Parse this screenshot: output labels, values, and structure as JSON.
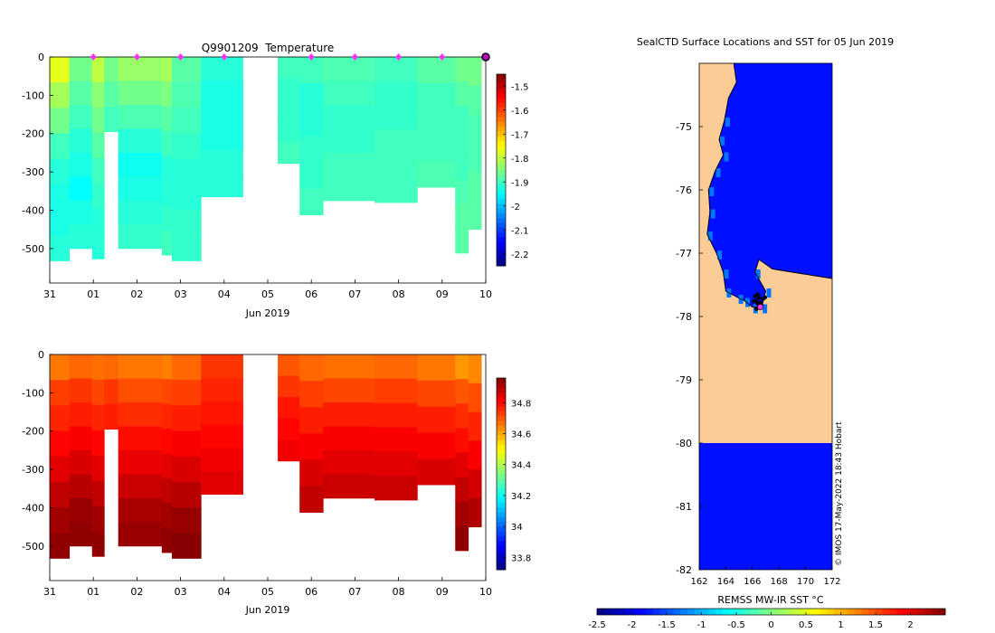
{
  "chart_data": [
    {
      "type": "heatmap",
      "title": "Q9901209  Temperature",
      "xlabel": "Jun 2019",
      "ylabel": "",
      "variable": "temperature",
      "x_range": [
        0,
        10
      ],
      "ylim": [
        -590,
        0
      ],
      "x_tick_labels": [
        "31",
        "01",
        "02",
        "03",
        "04",
        "05",
        "06",
        "07",
        "08",
        "09",
        "10"
      ],
      "y_tick_values": [
        0,
        -100,
        -200,
        -300,
        -400,
        -500
      ],
      "y_tick_labels": [
        "0",
        "-100",
        "-200",
        "-300",
        "-400",
        "-500"
      ],
      "colorbar": {
        "range": [
          -2.25,
          -1.45
        ],
        "tick_values": [
          -1.5,
          -1.6,
          -1.7,
          -1.8,
          -1.9,
          -2,
          -2.1,
          -2.2
        ],
        "tick_labels": [
          "-1.5",
          "-1.6",
          "-1.7",
          "-1.8",
          "-1.9",
          "-2",
          "-2.1",
          "-2.2"
        ],
        "colormap": "jet"
      },
      "profile_markers_x": [
        1,
        2,
        3,
        4,
        6,
        7,
        8,
        9,
        10
      ],
      "profiles": [
        {
          "x0": 0.0,
          "x1": 0.45,
          "bottom": -532,
          "values": [
            -1.77,
            -1.82,
            -1.86,
            -1.9,
            -1.92,
            -1.93,
            -1.93,
            -1.92
          ]
        },
        {
          "x0": 0.45,
          "x1": 0.97,
          "bottom": -500,
          "values": [
            -1.86,
            -1.88,
            -1.9,
            -1.92,
            -1.93,
            -1.95,
            -1.93,
            -1.92
          ]
        },
        {
          "x0": 0.97,
          "x1": 1.25,
          "bottom": -527,
          "values": [
            -1.8,
            -1.84,
            -1.86,
            -1.88,
            -1.9,
            -1.91,
            -1.92,
            -1.92
          ]
        },
        {
          "x0": 1.25,
          "x1": 1.57,
          "bottom": -195,
          "values": [
            -1.86,
            -1.88,
            -1.9
          ]
        },
        {
          "x0": 1.57,
          "x1": 2.57,
          "bottom": -500,
          "values": [
            -1.83,
            -1.86,
            -1.89,
            -1.92,
            -1.94,
            -1.93,
            -1.92,
            -1.91
          ]
        },
        {
          "x0": 2.57,
          "x1": 2.8,
          "bottom": -517,
          "values": [
            -1.82,
            -1.85,
            -1.88,
            -1.9,
            -1.92,
            -1.92,
            -1.91,
            -1.9
          ]
        },
        {
          "x0": 2.8,
          "x1": 3.47,
          "bottom": -532,
          "values": [
            -1.88,
            -1.89,
            -1.9,
            -1.91,
            -1.92,
            -1.92,
            -1.91,
            -1.91
          ]
        },
        {
          "x0": 3.47,
          "x1": 4.43,
          "bottom": -365,
          "values": [
            -1.92,
            -1.93,
            -1.93,
            -1.93,
            -1.92,
            -1.92
          ]
        },
        {
          "x0": 5.23,
          "x1": 5.73,
          "bottom": -278,
          "values": [
            -1.9,
            -1.91,
            -1.91,
            -1.91,
            -1.9
          ]
        },
        {
          "x0": 5.73,
          "x1": 6.27,
          "bottom": -412,
          "values": [
            -1.9,
            -1.92,
            -1.92,
            -1.91,
            -1.91,
            -1.9
          ]
        },
        {
          "x0": 6.27,
          "x1": 7.45,
          "bottom": -375,
          "values": [
            -1.89,
            -1.9,
            -1.91,
            -1.91,
            -1.9,
            -1.9
          ]
        },
        {
          "x0": 7.45,
          "x1": 8.43,
          "bottom": -380,
          "values": [
            -1.9,
            -1.91,
            -1.91,
            -1.9,
            -1.9,
            -1.9
          ]
        },
        {
          "x0": 8.43,
          "x1": 9.3,
          "bottom": -340,
          "values": [
            -1.88,
            -1.9,
            -1.9,
            -1.9,
            -1.89
          ]
        },
        {
          "x0": 9.3,
          "x1": 9.6,
          "bottom": -512,
          "values": [
            -1.86,
            -1.88,
            -1.9,
            -1.9,
            -1.9,
            -1.89,
            -1.88,
            -1.88
          ]
        },
        {
          "x0": 9.6,
          "x1": 9.9,
          "bottom": -450,
          "values": [
            -1.86,
            -1.88,
            -1.89,
            -1.89,
            -1.88,
            -1.88
          ]
        }
      ]
    },
    {
      "type": "heatmap",
      "title": "",
      "xlabel": "Jun 2019",
      "ylabel": "",
      "variable": "salinity",
      "x_range": [
        0,
        10
      ],
      "ylim": [
        -590,
        0
      ],
      "x_tick_labels": [
        "31",
        "01",
        "02",
        "03",
        "04",
        "05",
        "06",
        "07",
        "08",
        "09",
        "10"
      ],
      "y_tick_values": [
        0,
        -100,
        -200,
        -300,
        -400,
        -500
      ],
      "y_tick_labels": [
        "0",
        "-100",
        "-200",
        "-300",
        "-400",
        "-500"
      ],
      "colorbar": {
        "range": [
          33.72,
          34.96
        ],
        "tick_values": [
          34.8,
          34.6,
          34.4,
          34.2,
          34,
          33.8
        ],
        "tick_labels": [
          "34.8",
          "34.6",
          "34.4",
          "34.2",
          "34",
          "33.8"
        ],
        "colormap": "jet"
      },
      "profiles": [
        {
          "x0": 0.0,
          "x1": 0.45,
          "bottom": -532,
          "values": [
            34.66,
            34.73,
            34.76,
            34.8,
            34.84,
            34.88,
            34.92,
            34.94
          ]
        },
        {
          "x0": 0.45,
          "x1": 0.97,
          "bottom": -500,
          "values": [
            34.68,
            34.74,
            34.77,
            34.81,
            34.85,
            34.89,
            34.93,
            34.94
          ]
        },
        {
          "x0": 0.97,
          "x1": 1.25,
          "bottom": -527,
          "values": [
            34.67,
            34.72,
            34.76,
            34.8,
            34.84,
            34.88,
            34.92,
            34.94
          ]
        },
        {
          "x0": 1.25,
          "x1": 1.57,
          "bottom": -195,
          "values": [
            34.68,
            34.74,
            34.77
          ]
        },
        {
          "x0": 1.57,
          "x1": 2.57,
          "bottom": -500,
          "values": [
            34.66,
            34.71,
            34.75,
            34.79,
            34.83,
            34.87,
            34.91,
            34.93
          ]
        },
        {
          "x0": 2.57,
          "x1": 2.8,
          "bottom": -517,
          "values": [
            34.65,
            34.72,
            34.76,
            34.8,
            34.84,
            34.88,
            34.92,
            34.94
          ]
        },
        {
          "x0": 2.8,
          "x1": 3.47,
          "bottom": -532,
          "values": [
            34.68,
            34.73,
            34.77,
            34.81,
            34.85,
            34.89,
            34.93,
            34.95
          ]
        },
        {
          "x0": 3.47,
          "x1": 4.43,
          "bottom": -365,
          "values": [
            34.74,
            34.76,
            34.78,
            34.8,
            34.82,
            34.84
          ]
        },
        {
          "x0": 5.23,
          "x1": 5.73,
          "bottom": -278,
          "values": [
            34.7,
            34.74,
            34.78,
            34.8,
            34.82
          ]
        },
        {
          "x0": 5.73,
          "x1": 6.27,
          "bottom": -412,
          "values": [
            34.68,
            34.73,
            34.77,
            34.81,
            34.85,
            34.88
          ]
        },
        {
          "x0": 6.27,
          "x1": 7.45,
          "bottom": -375,
          "values": [
            34.67,
            34.72,
            34.77,
            34.81,
            34.84,
            34.87
          ]
        },
        {
          "x0": 7.45,
          "x1": 8.43,
          "bottom": -380,
          "values": [
            34.68,
            34.73,
            34.77,
            34.81,
            34.84,
            34.87
          ]
        },
        {
          "x0": 8.43,
          "x1": 9.3,
          "bottom": -340,
          "values": [
            34.66,
            34.72,
            34.77,
            34.81,
            34.85
          ]
        },
        {
          "x0": 9.3,
          "x1": 9.6,
          "bottom": -512,
          "values": [
            34.62,
            34.7,
            34.75,
            34.79,
            34.84,
            34.88,
            34.92,
            34.94
          ]
        },
        {
          "x0": 9.6,
          "x1": 9.9,
          "bottom": -450,
          "values": [
            34.64,
            34.71,
            34.76,
            34.81,
            34.86,
            34.9
          ]
        }
      ]
    },
    {
      "type": "heatmap",
      "title": "SealCTD Surface Locations and SST for 05 Jun 2019",
      "xlabel": "REMSS MW-IR SST °C",
      "ylabel": "",
      "variable": "sst",
      "lon_range": [
        162,
        172
      ],
      "lat_range": [
        -82,
        -74
      ],
      "x_tick_values": [
        162,
        164,
        166,
        168,
        170,
        172
      ],
      "x_tick_labels": [
        "162",
        "164",
        "166",
        "168",
        "170",
        "172"
      ],
      "y_tick_values": [
        -75,
        -76,
        -77,
        -78,
        -79,
        -80,
        -81,
        -82
      ],
      "y_tick_labels": [
        "-75",
        "-76",
        "-77",
        "-78",
        "-79",
        "-80",
        "-81",
        "-82"
      ],
      "open_water_sst": -1.8,
      "south_band_lat_top": -80,
      "colorbar": {
        "range": [
          -2.5,
          2.5
        ],
        "tick_values": [
          -2.5,
          -2,
          -1.5,
          -1,
          -0.5,
          0,
          0.5,
          1,
          1.5,
          2
        ],
        "tick_labels": [
          "-2.5",
          "-2",
          "-1.5",
          "-1",
          "-0.5",
          "0",
          "0.5",
          "1",
          "1.5",
          "2"
        ],
        "colormap": "jet"
      },
      "coastline_west": [
        [
          -74.0,
          164.6
        ],
        [
          -74.3,
          164.8
        ],
        [
          -74.55,
          164.2
        ],
        [
          -74.9,
          163.9
        ],
        [
          -75.2,
          163.5
        ],
        [
          -75.45,
          163.8
        ],
        [
          -75.7,
          163.2
        ],
        [
          -76.0,
          162.7
        ],
        [
          -76.35,
          162.8
        ],
        [
          -76.7,
          162.6
        ],
        [
          -77.0,
          163.3
        ],
        [
          -77.3,
          163.8
        ],
        [
          -77.6,
          164.0
        ],
        [
          -77.7,
          164.9
        ],
        [
          -77.75,
          165.4
        ],
        [
          -77.85,
          166.0
        ],
        [
          -77.85,
          166.7
        ],
        [
          -77.6,
          167.0
        ],
        [
          -77.3,
          166.2
        ],
        [
          -77.1,
          166.5
        ],
        [
          -77.25,
          167.5
        ],
        [
          -77.3,
          169.0
        ],
        [
          -77.35,
          170.5
        ],
        [
          -77.4,
          172.0
        ]
      ],
      "ice_shelf_lat_top": -77.45,
      "float_positions": [
        [
          -77.68,
          166.2
        ],
        [
          -77.7,
          166.5
        ],
        [
          -77.72,
          166.8
        ],
        [
          -77.75,
          166.3
        ],
        [
          -77.78,
          166.6
        ],
        [
          -77.8,
          166.4
        ],
        [
          -77.83,
          166.7
        ],
        [
          -77.86,
          166.5
        ],
        [
          -77.65,
          166.4
        ],
        [
          -77.7,
          166.95
        ],
        [
          -77.76,
          166.1
        ],
        [
          -77.88,
          166.3
        ]
      ],
      "current_position": [
        -77.85,
        166.6
      ]
    }
  ],
  "credit": "© IMOS 17-May-2022 18:43 Hobart"
}
